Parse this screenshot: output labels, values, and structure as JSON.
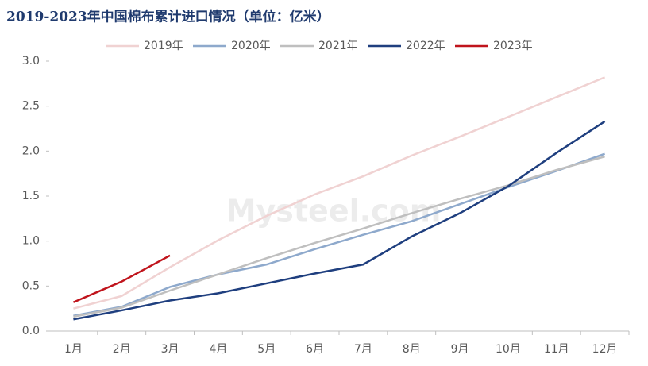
{
  "chart_data": {
    "type": "line",
    "title": "2019-2023年中国棉布累计进口情况（单位：亿米）",
    "watermark": "Mysteel.com",
    "categories": [
      "1月",
      "2月",
      "3月",
      "4月",
      "5月",
      "6月",
      "7月",
      "8月",
      "9月",
      "10月",
      "11月",
      "12月"
    ],
    "series": [
      {
        "name": "2019年",
        "color": "#f0d2d2",
        "values": [
          0.25,
          0.39,
          0.71,
          1.01,
          1.28,
          1.52,
          1.72,
          1.95,
          2.16,
          2.38,
          2.6,
          2.82
        ]
      },
      {
        "name": "2020年",
        "color": "#8ea9cc",
        "values": [
          0.17,
          0.27,
          0.49,
          0.63,
          0.74,
          0.91,
          1.07,
          1.22,
          1.41,
          1.6,
          1.78,
          1.97
        ]
      },
      {
        "name": "2021年",
        "color": "#bfbfbf",
        "values": [
          0.16,
          0.26,
          0.45,
          0.63,
          0.81,
          0.98,
          1.14,
          1.31,
          1.47,
          1.62,
          1.79,
          1.94
        ]
      },
      {
        "name": "2022年",
        "color": "#1f3f7f",
        "values": [
          0.13,
          0.23,
          0.34,
          0.42,
          0.53,
          0.64,
          0.74,
          1.05,
          1.31,
          1.61,
          1.98,
          2.33
        ]
      },
      {
        "name": "2023年",
        "color": "#c0141c",
        "values": [
          0.32,
          0.55,
          0.84,
          null,
          null,
          null,
          null,
          null,
          null,
          null,
          null,
          null
        ]
      }
    ],
    "ylim": [
      0,
      3
    ],
    "yticks": [
      {
        "value": 0,
        "label": "0.0"
      },
      0.5,
      {
        "value": 1,
        "label": "1.0"
      },
      1.5,
      {
        "value": 2,
        "label": "2.0"
      },
      2.5,
      {
        "value": 3,
        "label": "3.0"
      }
    ],
    "grid": false,
    "legend": "top"
  }
}
